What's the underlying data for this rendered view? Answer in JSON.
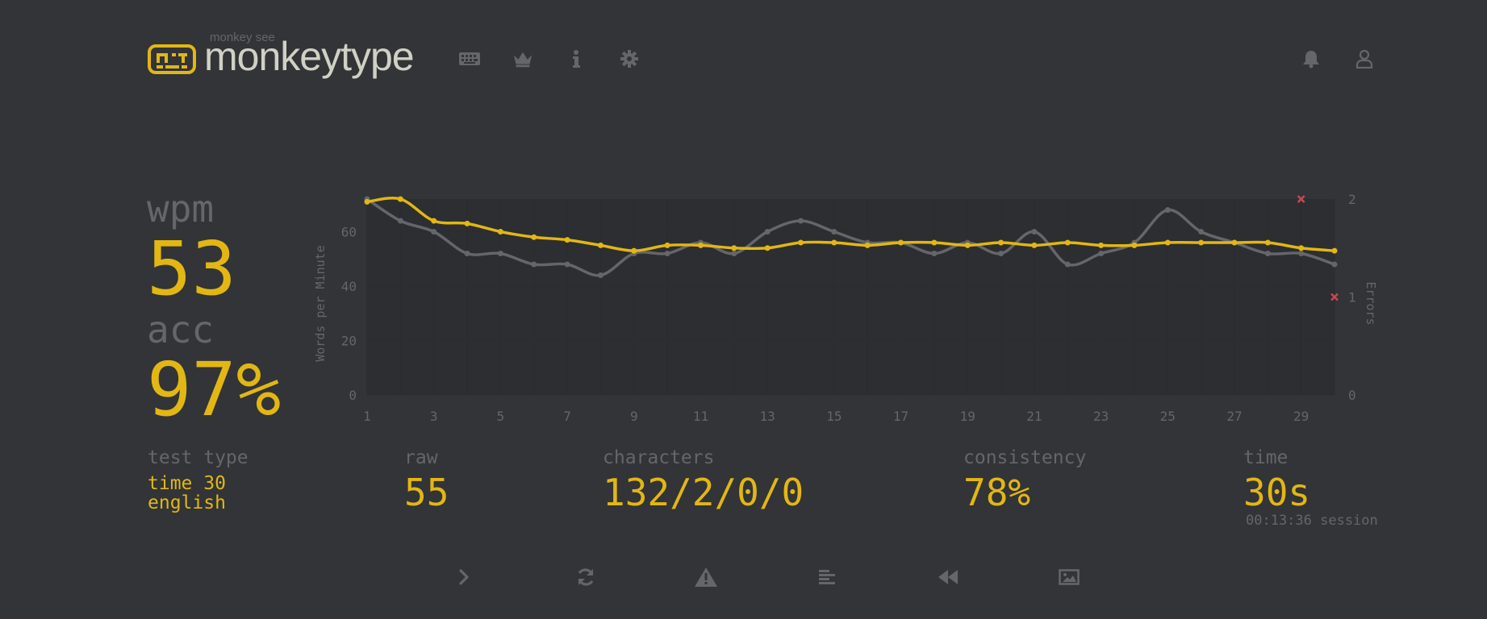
{
  "header": {
    "logo_small": "monkey see",
    "logo_title": "monkeytype",
    "nav_icons": [
      "keyboard-icon",
      "crown-icon",
      "info-icon",
      "gear-icon"
    ],
    "right_icons": [
      "bell-icon",
      "user-icon"
    ]
  },
  "stats": {
    "wpm_label": "wpm",
    "wpm_value": "53",
    "acc_label": "acc",
    "acc_value": "97%"
  },
  "details": {
    "test_type_label": "test type",
    "test_type_mode": "time 30",
    "test_type_language": "english",
    "raw_label": "raw",
    "raw_value": "55",
    "characters_label": "characters",
    "characters_value": "132/2/0/0",
    "consistency_label": "consistency",
    "consistency_value": "78%",
    "time_label": "time",
    "time_value": "30s",
    "session_text": "00:13:36 session"
  },
  "actions": [
    "next-test-icon",
    "restart-icon",
    "warning-icon",
    "words-history-icon",
    "replay-icon",
    "screenshot-icon"
  ],
  "colors": {
    "background": "#323437",
    "accent": "#e2b714",
    "sub": "#646669",
    "text": "#d1d0c5",
    "error": "#ca4754"
  },
  "chart_data": {
    "type": "line",
    "ylabel": "Words per Minute",
    "y2label": "Errors",
    "x": [
      1,
      2,
      3,
      4,
      5,
      6,
      7,
      8,
      9,
      10,
      11,
      12,
      13,
      14,
      15,
      16,
      17,
      18,
      19,
      20,
      21,
      22,
      23,
      24,
      25,
      26,
      27,
      28,
      29,
      30
    ],
    "xticks": [
      "1",
      "3",
      "5",
      "7",
      "9",
      "11",
      "13",
      "15",
      "17",
      "19",
      "21",
      "23",
      "25",
      "27",
      "29"
    ],
    "ylim": [
      0,
      72
    ],
    "yticks": [
      "0",
      "20",
      "40",
      "60"
    ],
    "y2lim": [
      0,
      2
    ],
    "y2ticks": [
      "0",
      "1",
      "2"
    ],
    "series": [
      {
        "values": [
          72,
          64,
          60,
          52,
          52,
          48,
          48,
          44,
          52,
          52,
          56,
          52,
          60,
          64,
          60,
          56,
          56,
          52,
          56,
          52,
          60,
          48,
          52,
          56,
          68,
          60,
          56,
          52,
          52,
          48
        ]
      },
      {
        "values": [
          71,
          72,
          64,
          63,
          60,
          58,
          57,
          55,
          53,
          55,
          55,
          54,
          54,
          56,
          56,
          55,
          56,
          56,
          55,
          56,
          55,
          56,
          55,
          55,
          56,
          56,
          56,
          56,
          54,
          53
        ]
      }
    ],
    "errors": [
      {
        "x": 29,
        "y": 2
      },
      {
        "x": 30,
        "y": 1
      }
    ]
  }
}
